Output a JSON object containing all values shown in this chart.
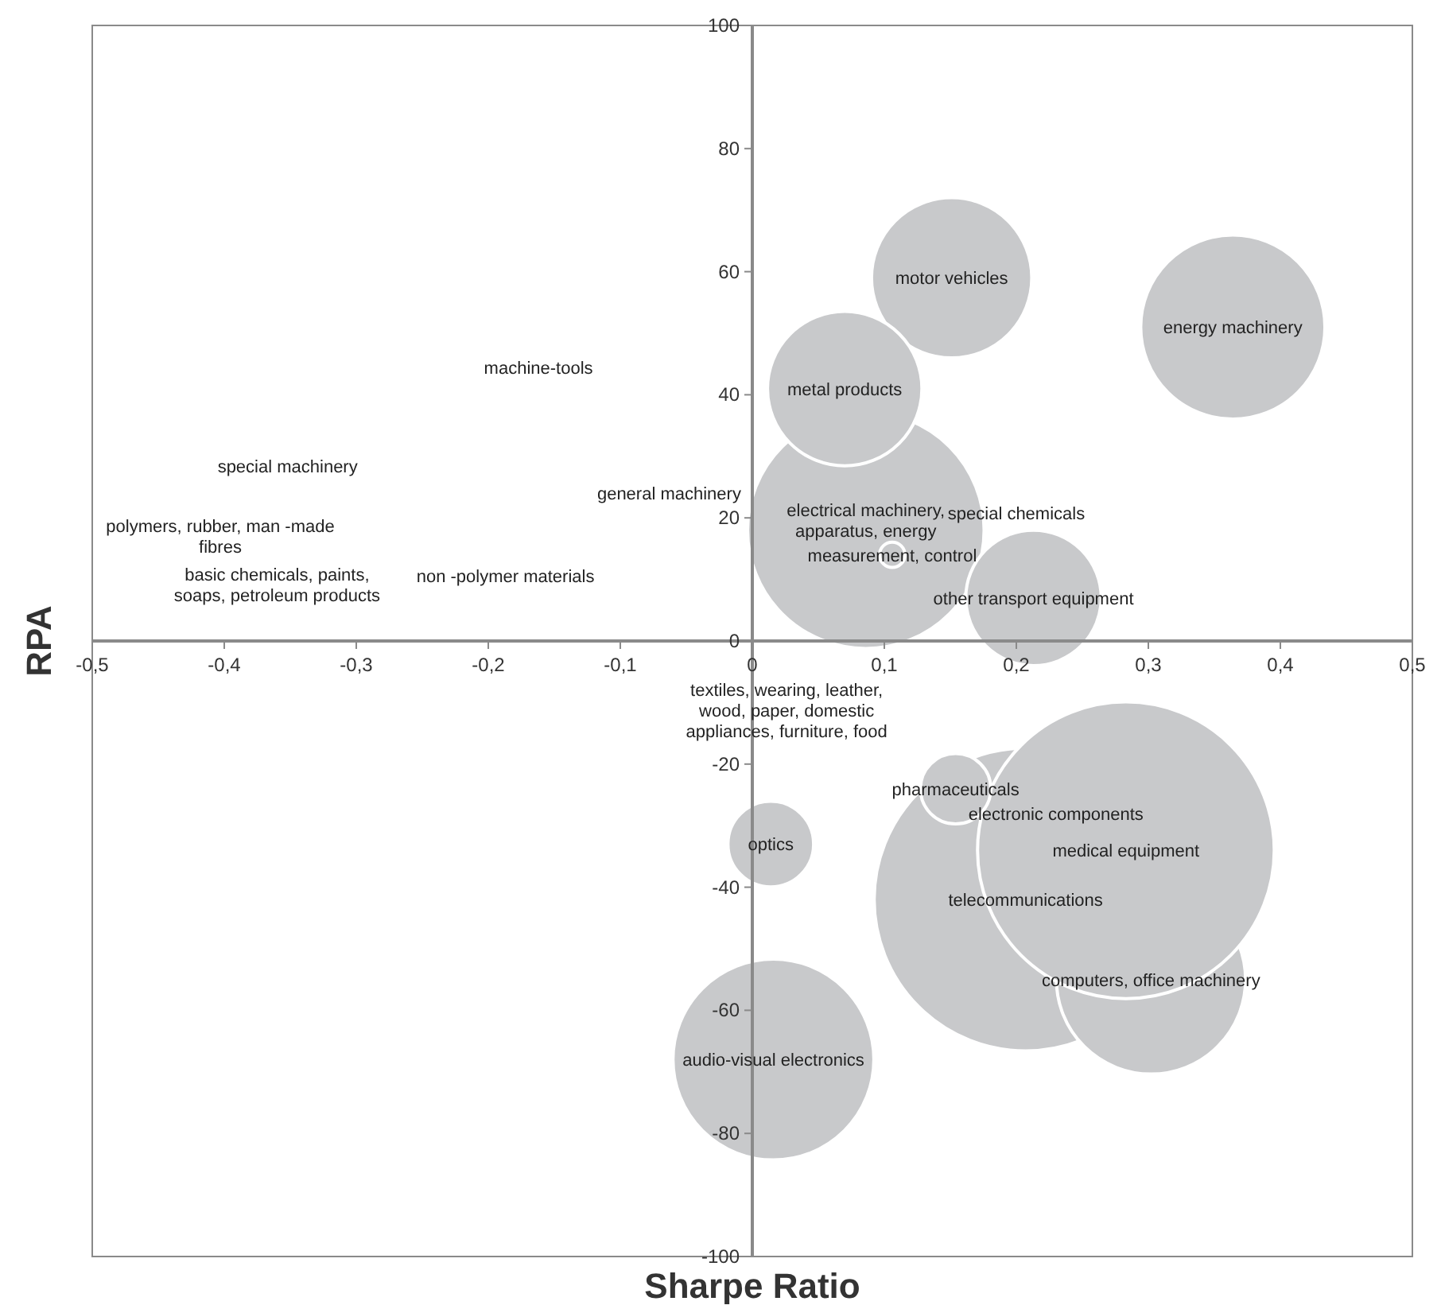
{
  "chart_data": {
    "type": "bubble",
    "xlabel": "Sharpe Ratio",
    "ylabel": "RPA",
    "grid": false,
    "color": "#c8c9cb",
    "x": [
      0.086,
      0.106,
      0.151,
      0.07,
      0.364,
      0.213,
      0.207,
      0.302,
      0.283,
      0.154,
      0.014,
      0.016
    ],
    "values": [
      18,
      14,
      59,
      41,
      51,
      7,
      -42,
      -55,
      -34,
      -24,
      -33,
      -68
    ],
    "sizes": [
      0.61,
      0.007,
      0.28,
      0.26,
      0.37,
      0.2,
      1,
      0.39,
      0.96,
      0.054,
      0.08,
      0.44
    ],
    "value_labels": [
      "electrical machinery, apparatus, energy",
      "measurement, control",
      "motor vehicles",
      "metal products",
      "energy machinery",
      "other transport equipment",
      "telecommunications",
      "computers, office machinery",
      "medical equipment",
      "pharmaceuticals",
      "optics",
      "audio-visual electronics"
    ],
    "annotations": [
      "electronic components",
      "special chemicals",
      "machine-tools",
      "special machinery",
      "general machinery",
      "polymers, rubber, man -made fibres",
      "basic chemicals, paints, soaps, petroleum products",
      "non -polymer materials",
      "textiles, wearing, leather, wood, paper, domestic appliances, furniture, food"
    ],
    "xlim": [
      -0.5,
      0.5
    ],
    "xticks": [
      {
        "value": -0.5,
        "label": "-0,5"
      },
      {
        "value": -0.4,
        "label": "-0,4"
      },
      {
        "value": -0.3,
        "label": "-0,3"
      },
      {
        "value": -0.2,
        "label": "-0,2"
      },
      {
        "value": -0.1,
        "label": "-0,1"
      },
      0,
      {
        "value": 0.1,
        "label": "0,1"
      },
      {
        "value": 0.2,
        "label": "0,2"
      },
      {
        "value": 0.3,
        "label": "0,3"
      },
      {
        "value": 0.4,
        "label": "0,4"
      },
      {
        "value": 0.5,
        "label": "0,5"
      }
    ],
    "ylim": [
      -100,
      100
    ],
    "yticks": [
      -100,
      -80,
      -60,
      -40,
      -20,
      0,
      20,
      40,
      60,
      80,
      100
    ]
  }
}
